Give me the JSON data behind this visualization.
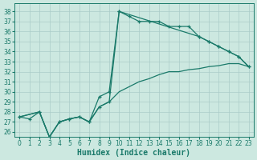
{
  "xlabel": "Humidex (Indice chaleur)",
  "xlim": [
    -0.5,
    23.5
  ],
  "ylim": [
    25.5,
    38.8
  ],
  "yticks": [
    26,
    27,
    28,
    29,
    30,
    31,
    32,
    33,
    34,
    35,
    36,
    37,
    38
  ],
  "xticks": [
    0,
    1,
    2,
    3,
    4,
    5,
    6,
    7,
    8,
    9,
    10,
    11,
    12,
    13,
    14,
    15,
    16,
    17,
    18,
    19,
    20,
    21,
    22,
    23
  ],
  "bg_color": "#cce8e0",
  "grid_color": "#aaccc8",
  "line_color": "#1a7a6a",
  "curve1_x": [
    0,
    1,
    2,
    3,
    4,
    5,
    6,
    7,
    8,
    9,
    10,
    11,
    12,
    13,
    14,
    15,
    16,
    17,
    18,
    19,
    20,
    21,
    22,
    23
  ],
  "curve1_y": [
    27.5,
    27.3,
    28.0,
    25.5,
    27.0,
    27.3,
    27.5,
    27.0,
    29.5,
    30.0,
    38.0,
    37.5,
    37.0,
    37.0,
    37.0,
    36.5,
    36.5,
    36.5,
    35.5,
    35.0,
    34.5,
    34.0,
    33.5,
    32.5
  ],
  "curve2_x": [
    0,
    2,
    3,
    4,
    5,
    6,
    7,
    8,
    9,
    10,
    18,
    19,
    20,
    21,
    22,
    23
  ],
  "curve2_y": [
    27.5,
    28.0,
    25.5,
    27.0,
    27.3,
    27.5,
    27.0,
    28.5,
    29.0,
    38.0,
    35.5,
    35.0,
    34.5,
    34.0,
    33.5,
    32.5
  ],
  "curve3_x": [
    0,
    2,
    3,
    4,
    5,
    6,
    7,
    8,
    9,
    10,
    11,
    12,
    13,
    14,
    15,
    16,
    17,
    18,
    19,
    20,
    21,
    22,
    23
  ],
  "curve3_y": [
    27.5,
    28.0,
    25.5,
    27.0,
    27.3,
    27.5,
    27.0,
    28.5,
    29.0,
    30.0,
    30.5,
    31.0,
    31.3,
    31.7,
    32.0,
    32.0,
    32.2,
    32.3,
    32.5,
    32.6,
    32.8,
    32.8,
    32.5
  ],
  "tick_fontsize": 5.5,
  "label_fontsize": 7
}
